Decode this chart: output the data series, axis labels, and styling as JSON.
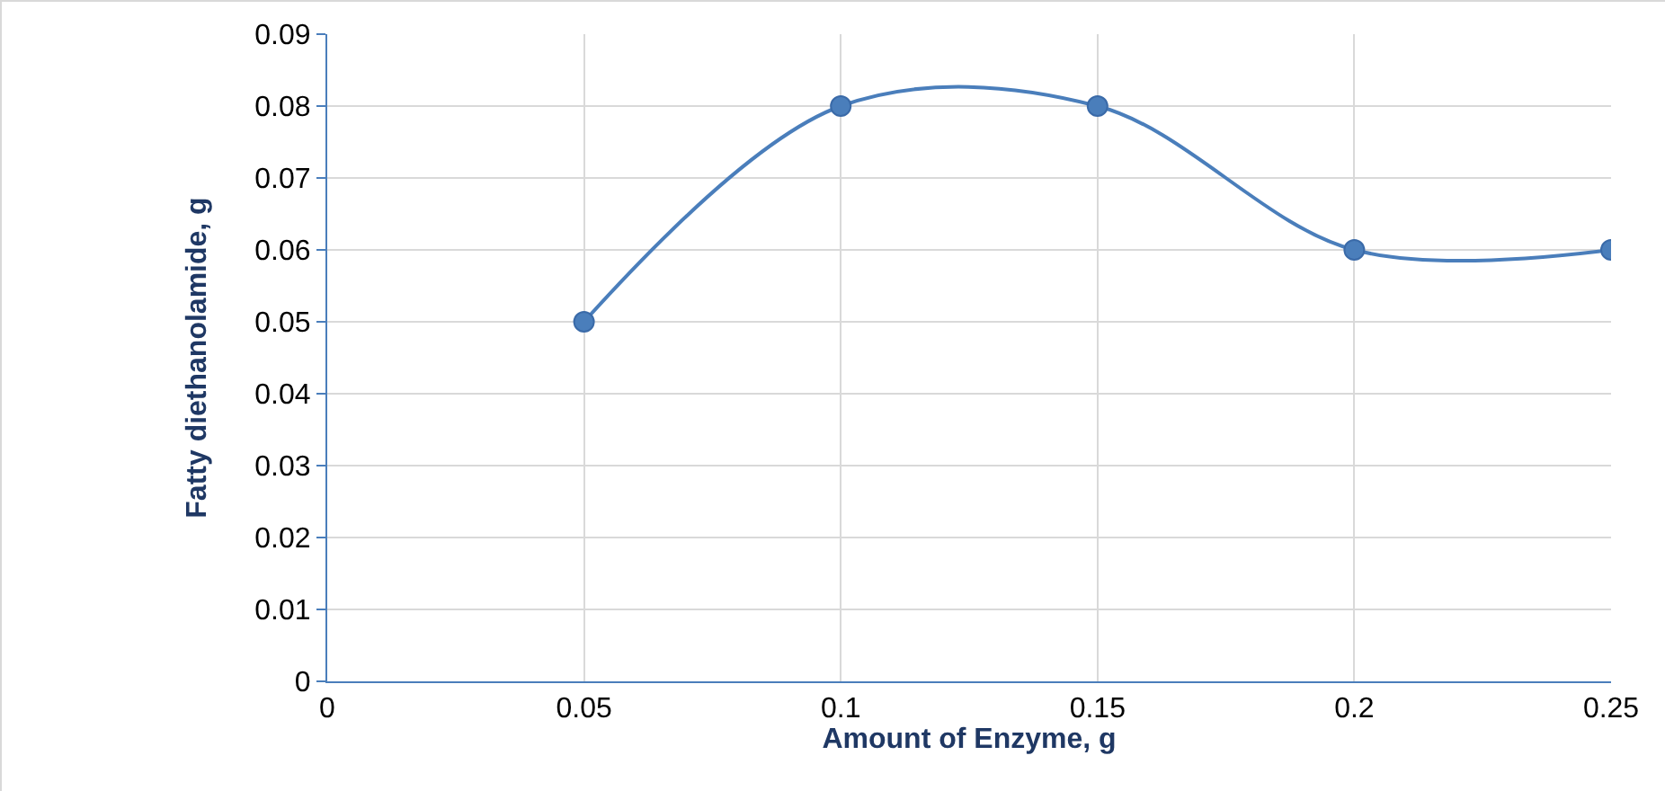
{
  "chart_data": {
    "type": "line",
    "xlabel": "Amount of Enzyme, g",
    "ylabel": "Fatty diethanolamide, g",
    "x": [
      0.05,
      0.1,
      0.15,
      0.2,
      0.25
    ],
    "series": [
      {
        "color": "#4a7ebb",
        "values": [
          0.05,
          0.08,
          0.08,
          0.06,
          0.06
        ]
      }
    ],
    "xlim": [
      0,
      0.25
    ],
    "xticks": [
      0,
      0.05,
      0.1,
      0.15,
      0.2,
      0.25
    ],
    "ylim": [
      0,
      0.09
    ],
    "yticks": [
      0,
      0.01,
      0.02,
      0.03,
      0.04,
      0.05,
      0.06,
      0.07,
      0.08,
      0.09
    ],
    "grid": true,
    "marker": "circle",
    "line_style": "solid"
  }
}
